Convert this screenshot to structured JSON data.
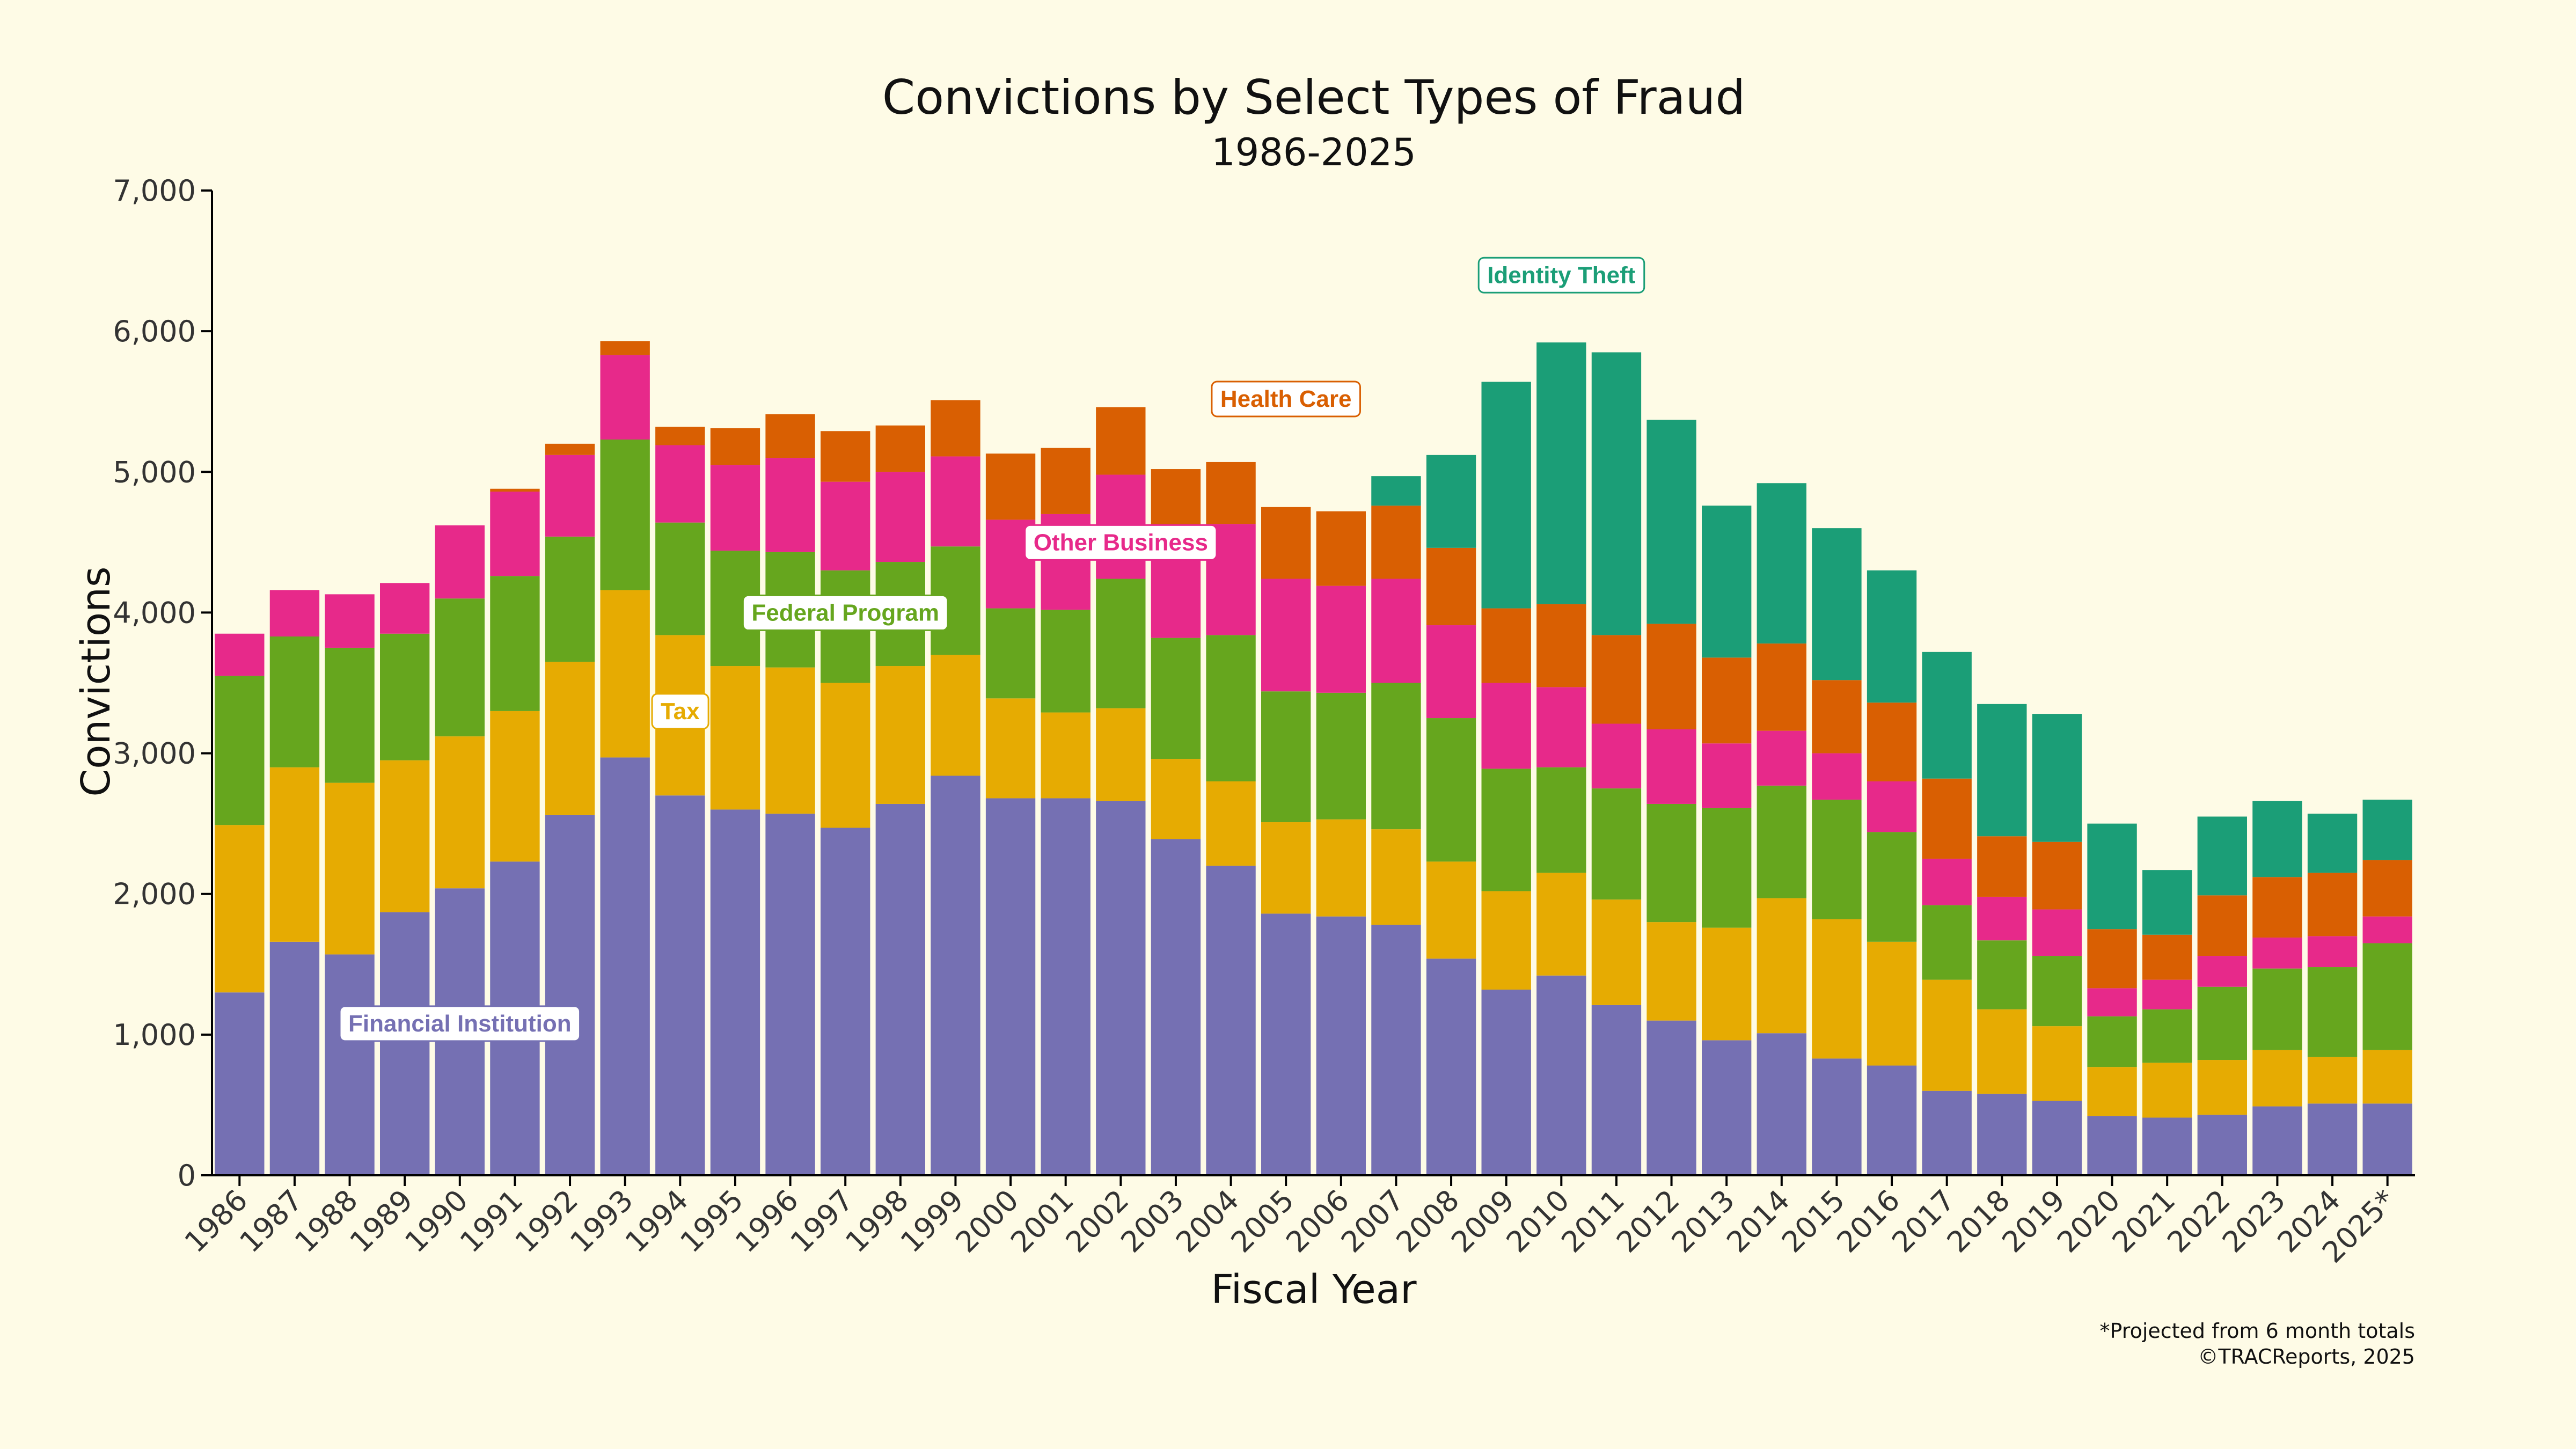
{
  "chart_data": {
    "type": "bar",
    "stacked": true,
    "title": "Convictions by Select Types of Fraud",
    "subtitle": "1986-2025",
    "xlabel": "Fiscal Year",
    "ylabel": "Convictions",
    "ylim": [
      0,
      7000
    ],
    "yticks": [
      0,
      1000,
      2000,
      3000,
      4000,
      5000,
      6000,
      7000
    ],
    "ytick_labels": [
      "0",
      "1,000",
      "2,000",
      "3,000",
      "4,000",
      "5,000",
      "6,000",
      "7,000"
    ],
    "grid": false,
    "categories": [
      "1986",
      "1987",
      "1988",
      "1989",
      "1990",
      "1991",
      "1992",
      "1993",
      "1994",
      "1995",
      "1996",
      "1997",
      "1998",
      "1999",
      "2000",
      "2001",
      "2002",
      "2003",
      "2004",
      "2005",
      "2006",
      "2007",
      "2008",
      "2009",
      "2010",
      "2011",
      "2012",
      "2013",
      "2014",
      "2015",
      "2016",
      "2017",
      "2018",
      "2019",
      "2020",
      "2021",
      "2022",
      "2023",
      "2024",
      "2025*"
    ],
    "series": [
      {
        "name": "Financial Institution",
        "color": "#7570b3",
        "values": [
          1300,
          1660,
          1570,
          1870,
          2040,
          2230,
          2560,
          2970,
          2700,
          2600,
          2570,
          2470,
          2640,
          2840,
          2680,
          2680,
          2660,
          2390,
          2200,
          1860,
          1840,
          1780,
          1540,
          1320,
          1420,
          1210,
          1100,
          960,
          1010,
          830,
          780,
          600,
          580,
          530,
          420,
          410,
          430,
          490,
          510,
          510
        ]
      },
      {
        "name": "Tax",
        "color": "#e6ab02",
        "values": [
          1190,
          1240,
          1220,
          1080,
          1080,
          1070,
          1090,
          1190,
          1140,
          1020,
          1040,
          1030,
          980,
          860,
          710,
          610,
          660,
          570,
          600,
          650,
          690,
          680,
          690,
          700,
          730,
          750,
          700,
          800,
          960,
          990,
          880,
          790,
          600,
          530,
          350,
          390,
          390,
          400,
          330,
          380
        ]
      },
      {
        "name": "Federal Program",
        "color": "#66a61e",
        "values": [
          1060,
          930,
          960,
          900,
          980,
          960,
          890,
          1070,
          800,
          820,
          820,
          800,
          740,
          770,
          640,
          730,
          920,
          860,
          1040,
          930,
          900,
          1040,
          1020,
          870,
          750,
          790,
          840,
          850,
          800,
          850,
          780,
          530,
          490,
          500,
          360,
          380,
          520,
          580,
          640,
          760
        ]
      },
      {
        "name": "Other Business",
        "color": "#e7298a",
        "values": [
          300,
          330,
          380,
          360,
          520,
          600,
          580,
          600,
          550,
          610,
          670,
          630,
          640,
          640,
          630,
          680,
          740,
          680,
          790,
          800,
          760,
          740,
          660,
          610,
          570,
          460,
          530,
          460,
          390,
          330,
          360,
          330,
          310,
          330,
          200,
          210,
          220,
          220,
          220,
          190
        ]
      },
      {
        "name": "Health Care",
        "color": "#d95f02",
        "values": [
          0,
          0,
          0,
          0,
          0,
          20,
          80,
          100,
          130,
          260,
          310,
          360,
          330,
          400,
          470,
          470,
          480,
          520,
          440,
          510,
          530,
          520,
          550,
          530,
          590,
          630,
          750,
          610,
          620,
          520,
          560,
          570,
          430,
          480,
          420,
          320,
          430,
          430,
          450,
          400
        ]
      },
      {
        "name": "Identity Theft",
        "color": "#1b9e77",
        "values": [
          0,
          0,
          0,
          0,
          0,
          0,
          0,
          0,
          0,
          0,
          0,
          0,
          0,
          0,
          0,
          0,
          0,
          0,
          0,
          0,
          0,
          210,
          660,
          1610,
          1860,
          2010,
          1450,
          1080,
          1140,
          1080,
          940,
          900,
          940,
          910,
          750,
          460,
          560,
          540,
          420,
          430
        ]
      }
    ],
    "series_labels": [
      {
        "series": "Financial Institution",
        "text": "Financial Institution",
        "x": "1990",
        "y": 1080
      },
      {
        "series": "Tax",
        "text": "Tax",
        "x": "1994",
        "y": 3300
      },
      {
        "series": "Federal Program",
        "text": "Federal Program",
        "x": "1997",
        "y": 4000
      },
      {
        "series": "Other Business",
        "text": "Other Business",
        "x": "2002",
        "y": 4500
      },
      {
        "series": "Health Care",
        "text": "Health Care",
        "x": "2005",
        "y": 5520
      },
      {
        "series": "Identity Theft",
        "text": "Identity Theft",
        "x": "2010",
        "y": 6400
      }
    ],
    "footnote": "*Projected from 6 month totals",
    "credit": "©TRACReports, 2025"
  }
}
